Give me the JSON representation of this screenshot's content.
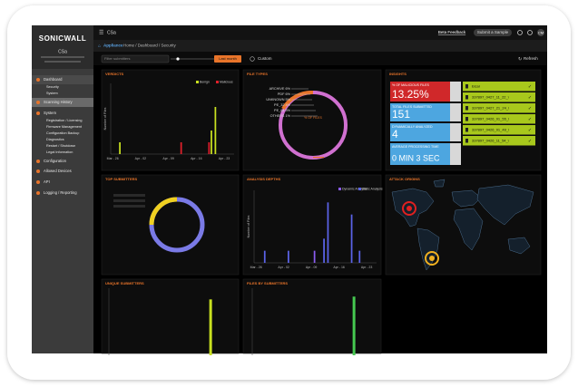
{
  "sidebar": {
    "brand": "SONICWALL",
    "device": "CSa",
    "menu": [
      "Dashboard",
      "Security",
      "System",
      "Scanning History",
      "System",
      "Registration / Licensing",
      "Firmware Management",
      "Configuration Backup",
      "Diagnostics",
      "Restart / Shutdown",
      "Legal Information",
      "Configuration",
      "Allowed Devices",
      "API",
      "Logging / Reporting"
    ]
  },
  "topbar": {
    "app": "CSa",
    "feedback": "Beta Feedback",
    "submit": "Submit a Sample",
    "user": "CM"
  },
  "breadcrumb": {
    "root": "Appliance",
    "path": "Home / Dashboard / Security"
  },
  "filters": {
    "search": "Filter submitters",
    "period": "Last month",
    "custom": "Custom",
    "refresh": "Refresh"
  },
  "verdicts": {
    "title": "VERDICTS",
    "y_label": "Number of Files",
    "categories": [
      "Mar - 26",
      null,
      null,
      null,
      null,
      null,
      null,
      "Apr - 02",
      null,
      null,
      null,
      null,
      null,
      null,
      "Apr - 09",
      null,
      null,
      null,
      null,
      null,
      null,
      "Apr - 16",
      null,
      null,
      null,
      null,
      null,
      null,
      "Apr - 23",
      null,
      null
    ],
    "series": [
      {
        "name": "Benign",
        "color": "#c8e020",
        "values": [
          0,
          0,
          1,
          0,
          0,
          0,
          0,
          0,
          0,
          0,
          0,
          0,
          0,
          0,
          0,
          0,
          0,
          0,
          0,
          0,
          0,
          0,
          0,
          0,
          0,
          2,
          4,
          0,
          0,
          0,
          0
        ]
      },
      {
        "name": "Malicious",
        "color": "#e0202a",
        "values": [
          0,
          0,
          0,
          0,
          0,
          0,
          0,
          0,
          0,
          0,
          0,
          0,
          0,
          0,
          0,
          0,
          0,
          1,
          0,
          0,
          0,
          0,
          0,
          0,
          1,
          0,
          0,
          0,
          0,
          0,
          0
        ]
      }
    ],
    "ylim": [
      0,
      6
    ]
  },
  "file_types": {
    "title": "FILE TYPES",
    "labels": [
      "ARCHIVE 6%",
      "PDF 6%",
      "UNKNOWN 5%",
      "PE_32 4%",
      "PE_64 3%",
      "OTHERS 1%"
    ],
    "center": "% OF FILES"
  },
  "insights": {
    "title": "INSIGHTS",
    "stats": [
      {
        "label": "% OF MALICIOUS FILES",
        "value": "13.25%"
      },
      {
        "label": "TOTAL FILES SUBMITTED",
        "value": "151"
      },
      {
        "label": "DYNAMICALLY ANALYZED",
        "value": "4"
      },
      {
        "label": "AVERAGE PROCESSING TIME",
        "value": "0 MIN 3 SEC"
      }
    ],
    "files": [
      "Eicar",
      "337897_0427_11_22_\\",
      "337897_0427_21_24_\\",
      "337897_0426_01_55_\\",
      "337897_0426_01_49_\\",
      "337897_0426_11_54_\\"
    ]
  },
  "top_submitters": {
    "title": "TOP SUBMITTERS"
  },
  "analysis_depth": {
    "title": "ANALYSIS DEPTHS",
    "y_label": "Number of Files",
    "categories": [
      "Mar - 26",
      null,
      null,
      null,
      null,
      null,
      null,
      "Apr - 02",
      null,
      null,
      null,
      null,
      null,
      null,
      "Apr - 09",
      null,
      null,
      null,
      null,
      null,
      null,
      "Apr - 16",
      null,
      null,
      null,
      null,
      null,
      null,
      "Apr - 23",
      null,
      null
    ],
    "series": [
      {
        "name": "Dynamic Analysis",
        "color": "#8a5cf0",
        "values": [
          0,
          0,
          0,
          0,
          0,
          0,
          0,
          0,
          0,
          0,
          0,
          0,
          0,
          0,
          0,
          1,
          0,
          0,
          0,
          0,
          0,
          0,
          0,
          0,
          0,
          0,
          0,
          0,
          0,
          0,
          0
        ]
      },
      {
        "name": "Static Analysis",
        "color": "#5b63e8",
        "values": [
          0,
          0,
          1,
          0,
          0,
          0,
          0,
          0,
          1,
          0,
          0,
          0,
          0,
          0,
          0,
          0,
          0,
          2,
          5,
          0,
          0,
          0,
          0,
          0,
          4,
          0,
          1,
          0,
          0,
          0,
          0
        ]
      }
    ],
    "ylim": [
      0,
      6
    ]
  },
  "attack_origins": {
    "title": "ATTACK ORIGINS"
  },
  "unique_submitters": {
    "title": "UNIQUE SUBMITTERS",
    "color": "#c8e020",
    "values": [
      0,
      0,
      0,
      0,
      0,
      0,
      5,
      0
    ],
    "ylim": [
      0,
      6
    ]
  },
  "files_by_submitters": {
    "title": "FILES BY SUBMITTERS",
    "color": "#46c850",
    "values": [
      0,
      0,
      0,
      0,
      0,
      0,
      140,
      0
    ],
    "ylim": [
      0,
      160
    ]
  }
}
